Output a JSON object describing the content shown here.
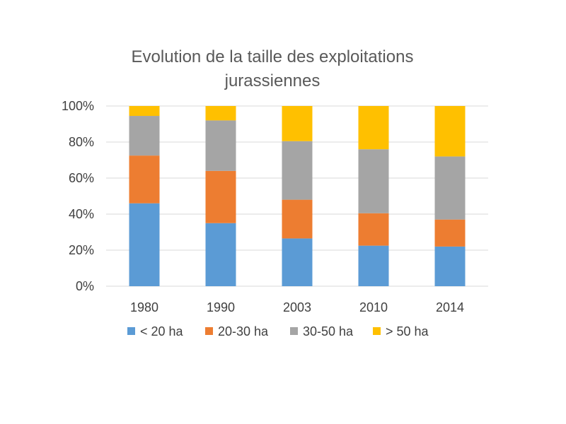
{
  "chart_data": {
    "type": "bar",
    "stacked": true,
    "percent": true,
    "title": [
      "Evolution de la taille des exploitations",
      "jurassiennes"
    ],
    "categories": [
      "1980",
      "1990",
      "2003",
      "2010",
      "2014"
    ],
    "series": [
      {
        "name": "< 20 ha",
        "color": "#5B9BD5",
        "values": [
          46,
          35,
          26.5,
          22.5,
          22
        ]
      },
      {
        "name": "20-30 ha",
        "color": "#ED7D31",
        "values": [
          26.5,
          29,
          21.5,
          18,
          15
        ]
      },
      {
        "name": "30-50 ha",
        "color": "#A5A5A5",
        "values": [
          22,
          28,
          32.5,
          35.5,
          35
        ]
      },
      {
        "name": "> 50 ha",
        "color": "#FFC000",
        "values": [
          5.5,
          8,
          19.5,
          24,
          28
        ]
      }
    ],
    "yticks": [
      "0%",
      "20%",
      "40%",
      "60%",
      "80%",
      "100%"
    ],
    "ylim": [
      0,
      100
    ],
    "grid": true,
    "legend_position": "bottom"
  }
}
